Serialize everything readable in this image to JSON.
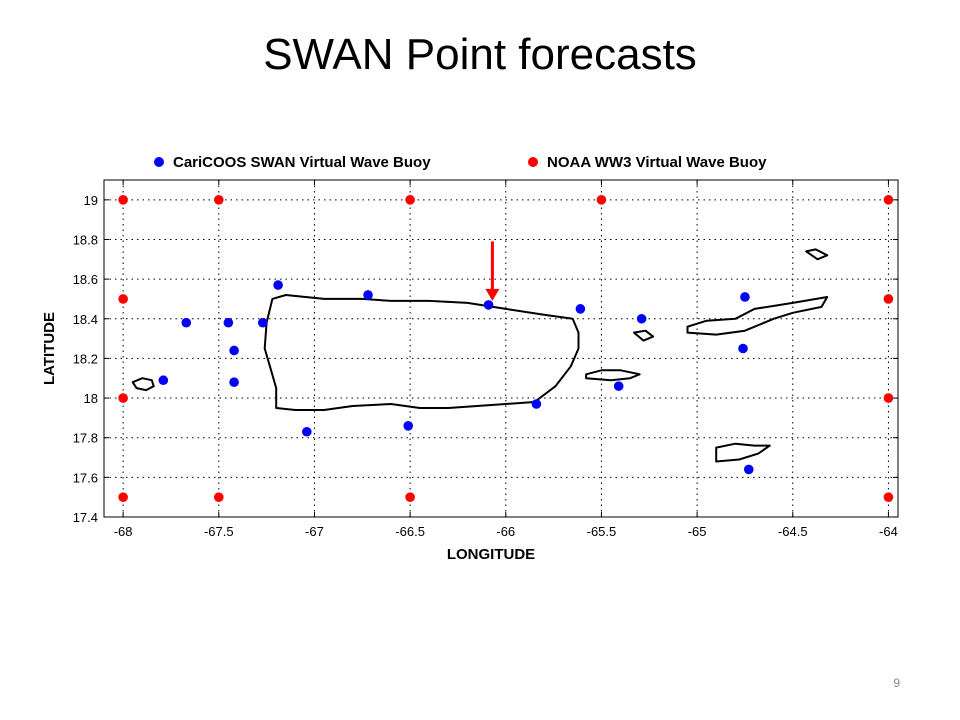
{
  "slide": {
    "title": "SWAN Point forecasts",
    "page_number": "9"
  },
  "chart_data": {
    "type": "scatter",
    "title": "",
    "xlabel": "LONGITUDE",
    "ylabel": "LATITUDE",
    "xlim": [
      -68.1,
      -63.95
    ],
    "ylim": [
      17.4,
      19.1
    ],
    "xticks": [
      -68,
      -67.5,
      -67,
      -66.5,
      -66,
      -65.5,
      -65,
      -64.5,
      -64
    ],
    "xtick_labels": [
      "-68",
      "-67.5",
      "-67",
      "-66.5",
      "-66",
      "-65.5",
      "-65",
      "-64.5",
      "-64"
    ],
    "yticks": [
      17.4,
      17.6,
      17.8,
      18,
      18.2,
      18.4,
      18.6,
      18.8,
      19
    ],
    "ytick_labels": [
      "17.4",
      "17.6",
      "17.8",
      "18",
      "18.2",
      "18.4",
      "18.6",
      "18.8",
      "19"
    ],
    "grid": true,
    "legend_position": "top",
    "series": [
      {
        "name": "CariCOOS SWAN Virtual Wave Buoy",
        "color": "#0000ff",
        "points": [
          [
            -67.19,
            18.57
          ],
          [
            -66.72,
            18.52
          ],
          [
            -66.09,
            18.47
          ],
          [
            -65.61,
            18.45
          ],
          [
            -65.29,
            18.4
          ],
          [
            -64.75,
            18.51
          ],
          [
            -67.67,
            18.38
          ],
          [
            -67.45,
            18.38
          ],
          [
            -67.27,
            18.38
          ],
          [
            -67.42,
            18.24
          ],
          [
            -67.42,
            18.08
          ],
          [
            -67.79,
            18.09
          ],
          [
            -64.76,
            18.25
          ],
          [
            -65.41,
            18.06
          ],
          [
            -65.84,
            17.97
          ],
          [
            -66.51,
            17.86
          ],
          [
            -67.04,
            17.83
          ],
          [
            -64.73,
            17.64
          ]
        ]
      },
      {
        "name": "NOAA WW3 Virtual Wave Buoy",
        "color": "#ff0000",
        "points": [
          [
            -68,
            19
          ],
          [
            -67.5,
            19
          ],
          [
            -66.5,
            19
          ],
          [
            -65.5,
            19
          ],
          [
            -64,
            19
          ],
          [
            -68,
            18.5
          ],
          [
            -64,
            18.5
          ],
          [
            -68,
            18
          ],
          [
            -64,
            18
          ],
          [
            -68,
            17.5
          ],
          [
            -67.5,
            17.5
          ],
          [
            -66.5,
            17.5
          ],
          [
            -64,
            17.5
          ]
        ]
      }
    ],
    "annotations": [
      {
        "type": "arrow",
        "color": "#ff0000",
        "from": [
          -66.07,
          18.79
        ],
        "to": [
          -66.07,
          18.49
        ]
      }
    ]
  }
}
